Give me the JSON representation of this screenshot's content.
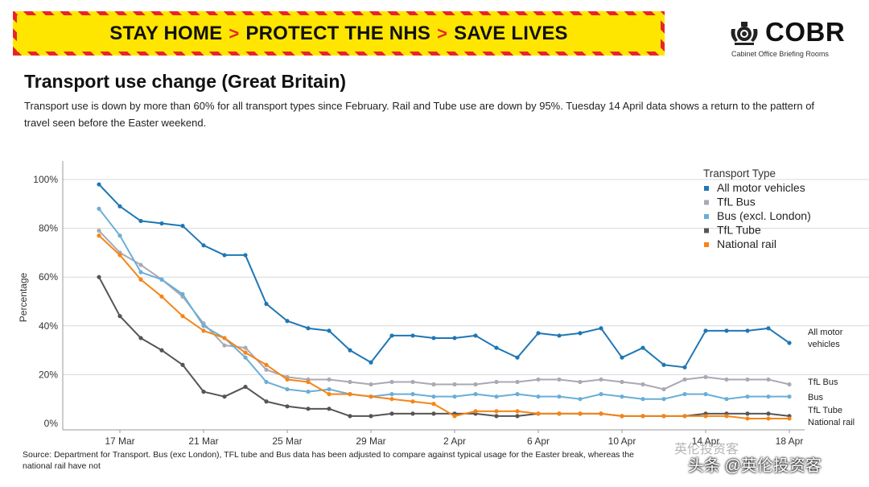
{
  "banner": {
    "parts": [
      "STAY HOME",
      "PROTECT THE NHS",
      "SAVE LIVES"
    ],
    "separator": ">",
    "colors": {
      "background": "#ffe600",
      "stripe": "#e8242a"
    }
  },
  "logo": {
    "name": "COBR",
    "subtitle": "Cabinet Office Briefing Rooms",
    "icon": "royal-crest-icon"
  },
  "title": "Transport use change (Great Britain)",
  "subtitle": "Transport use is down by more than 60% for all transport types since February. Rail and Tube use are down by 95%. Tuesday 14 April data shows a return to the pattern of travel seen before the Easter weekend.",
  "source": "Source: Department for Transport. Bus (exc London), TFL tube and Bus data has been adjusted to compare against typical usage for the Easter break, whereas the national rail have not",
  "watermark": "英伦投资客",
  "credit": "头条 @英伦投资客",
  "chart_data": {
    "type": "line",
    "x": [
      "16 Mar",
      "17 Mar",
      "18 Mar",
      "19 Mar",
      "20 Mar",
      "21 Mar",
      "22 Mar",
      "23 Mar",
      "24 Mar",
      "25 Mar",
      "26 Mar",
      "27 Mar",
      "28 Mar",
      "29 Mar",
      "30 Mar",
      "31 Mar",
      "1 Apr",
      "2 Apr",
      "3 Apr",
      "4 Apr",
      "5 Apr",
      "6 Apr",
      "7 Apr",
      "8 Apr",
      "9 Apr",
      "10 Apr",
      "11 Apr",
      "12 Apr",
      "13 Apr",
      "14 Apr",
      "15 Apr",
      "16 Apr",
      "17 Apr",
      "18 Apr"
    ],
    "x_ticks": [
      {
        "label": "17 Mar",
        "date": "17 Mar"
      },
      {
        "label": "21 Mar",
        "date": "21 Mar"
      },
      {
        "label": "25 Mar",
        "date": "25 Mar"
      },
      {
        "label": "29 Mar",
        "date": "29 Mar"
      },
      {
        "label": "2 Apr",
        "date": "2 Apr"
      },
      {
        "label": "6 Apr",
        "date": "6 Apr"
      },
      {
        "label": "10 Apr",
        "date": "10 Apr"
      },
      {
        "label": "14 Apr",
        "date": "14 Apr"
      },
      {
        "label": "18 Apr",
        "date": "18 Apr"
      }
    ],
    "ylabel": "Percentage",
    "ylim": [
      0,
      100
    ],
    "y_ticks": [
      0,
      20,
      40,
      60,
      80,
      100
    ],
    "y_tick_labels": [
      "0%",
      "20%",
      "40%",
      "60%",
      "80%",
      "100%"
    ],
    "grid": true,
    "legend": {
      "title": "Transport Type",
      "position": "top-right"
    },
    "series": [
      {
        "name": "All motor vehicles",
        "end_label": "All motor vehicles",
        "color": "#1f77b4",
        "values": [
          98,
          89,
          83,
          82,
          81,
          73,
          69,
          69,
          49,
          42,
          39,
          38,
          30,
          25,
          36,
          36,
          35,
          35,
          36,
          31,
          27,
          37,
          36,
          37,
          39,
          27,
          31,
          24,
          23,
          38,
          38,
          38,
          39,
          33
        ]
      },
      {
        "name": "TfL Bus",
        "end_label": "TfL Bus",
        "color": "#a9a9b4",
        "values": [
          79,
          70,
          65,
          59,
          52,
          41,
          32,
          31,
          22,
          19,
          18,
          18,
          17,
          16,
          17,
          17,
          16,
          16,
          16,
          17,
          17,
          18,
          18,
          17,
          18,
          17,
          16,
          14,
          18,
          19,
          18,
          18,
          18,
          16
        ]
      },
      {
        "name": "Bus (excl. London)",
        "end_label": "Bus",
        "color": "#6aaed6",
        "values": [
          88,
          77,
          62,
          59,
          53,
          40,
          35,
          27,
          17,
          14,
          13,
          14,
          12,
          11,
          12,
          12,
          11,
          11,
          12,
          11,
          12,
          11,
          11,
          10,
          12,
          11,
          10,
          10,
          12,
          12,
          10,
          11,
          11,
          11
        ]
      },
      {
        "name": "TfL Tube",
        "end_label": "TfL Tube",
        "color": "#555555",
        "values": [
          60,
          44,
          35,
          30,
          24,
          13,
          11,
          15,
          9,
          7,
          6,
          6,
          3,
          3,
          4,
          4,
          4,
          4,
          4,
          3,
          3,
          4,
          4,
          4,
          4,
          3,
          3,
          3,
          3,
          4,
          4,
          4,
          4,
          3
        ]
      },
      {
        "name": "National rail",
        "end_label": "National rail",
        "color": "#f58518",
        "values": [
          77,
          69,
          59,
          52,
          44,
          38,
          35,
          29,
          24,
          18,
          17,
          12,
          12,
          11,
          10,
          9,
          8,
          3,
          5,
          5,
          5,
          4,
          4,
          4,
          4,
          3,
          3,
          3,
          3,
          3,
          3,
          2,
          2,
          2
        ]
      }
    ]
  }
}
